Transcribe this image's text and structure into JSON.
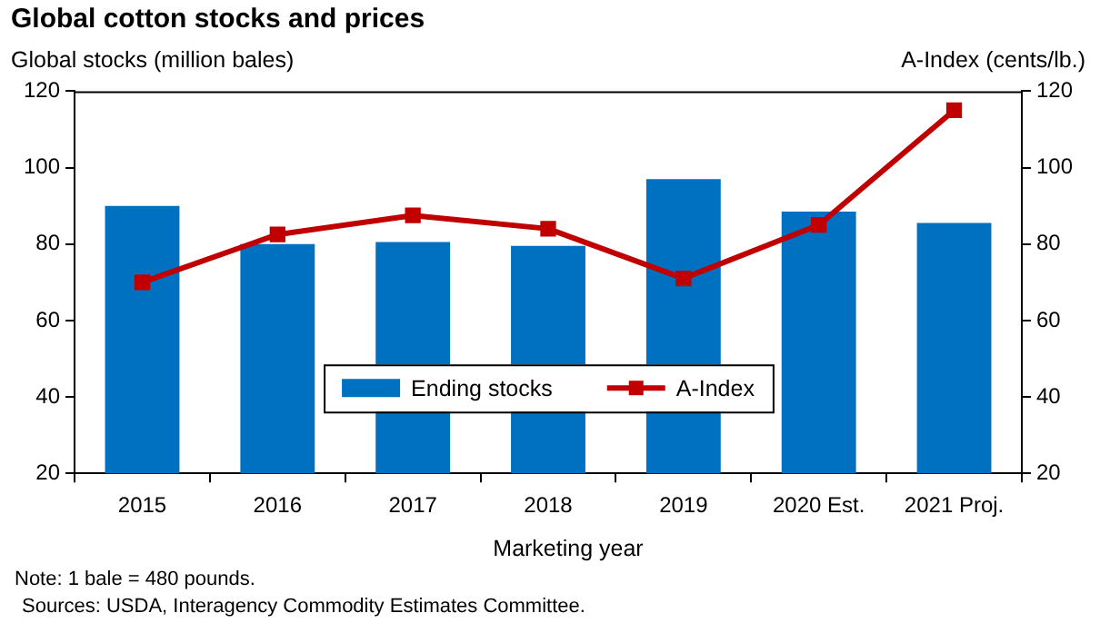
{
  "chart_data": {
    "type": "bar",
    "title": "Global cotton stocks and prices",
    "ylabel": "Global stocks (million bales)",
    "y2label": "A-Index (cents/lb.)",
    "xlabel": "Marketing year",
    "annotations": [
      "Note: 1 bale = 480 pounds.",
      "Sources: USDA, Interagency Commodity Estimates Committee."
    ],
    "categories": [
      "2015",
      "2016",
      "2017",
      "2018",
      "2019",
      "2020 Est.",
      "2021 Proj."
    ],
    "series": [
      {
        "name": "Ending stocks",
        "color": "#0070c0",
        "values": [
          90,
          80,
          80.5,
          79.5,
          97,
          88.5,
          85.5
        ]
      },
      {
        "name": "A-Index",
        "type": "line",
        "axis": "y2",
        "color": "#c00000",
        "marker": "square",
        "values": [
          70,
          82.5,
          87.5,
          84,
          71,
          85,
          115
        ]
      }
    ],
    "ylim": [
      20,
      120
    ],
    "yticks": [
      20,
      40,
      60,
      80,
      100,
      120
    ],
    "y2lim": [
      20,
      120
    ],
    "y2ticks": [
      20,
      40,
      60,
      80,
      100,
      120
    ],
    "grid": false,
    "legend": "bottom"
  }
}
